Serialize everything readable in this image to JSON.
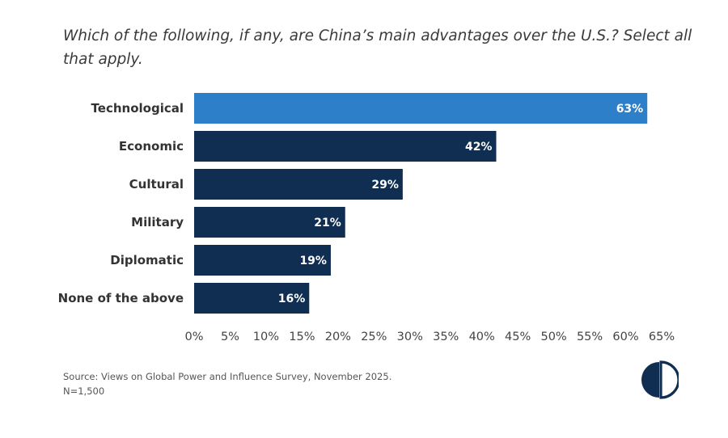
{
  "question": "Which of the following, if any, are China’s main advantages over the U.S.? Select all that apply.",
  "chart_data": {
    "type": "bar",
    "orientation": "horizontal",
    "categories": [
      "Technological",
      "Economic",
      "Cultural",
      "Military",
      "Diplomatic",
      "None of the above"
    ],
    "values": [
      63,
      42,
      29,
      21,
      19,
      16
    ],
    "value_labels": [
      "63%",
      "42%",
      "29%",
      "21%",
      "19%",
      "16%"
    ],
    "highlight_index": 0,
    "xlim": [
      0,
      65
    ],
    "x_ticks": [
      0,
      5,
      10,
      15,
      20,
      25,
      30,
      35,
      40,
      45,
      50,
      55,
      60,
      65
    ],
    "x_tick_labels": [
      "0%",
      "5%",
      "10%",
      "15%",
      "20%",
      "25%",
      "30%",
      "35%",
      "40%",
      "45%",
      "50%",
      "55%",
      "60%",
      "65%"
    ],
    "grid": false,
    "colors": {
      "highlight": "#2e7fc9",
      "bar": "#0f2e52"
    }
  },
  "source": {
    "line1": "Source: Views on Global Power and Influence Survey, November 2025.",
    "line2": "N=1,500"
  },
  "logo": {
    "icon": "half-circle-logo-icon",
    "color": "#0f2e52"
  }
}
